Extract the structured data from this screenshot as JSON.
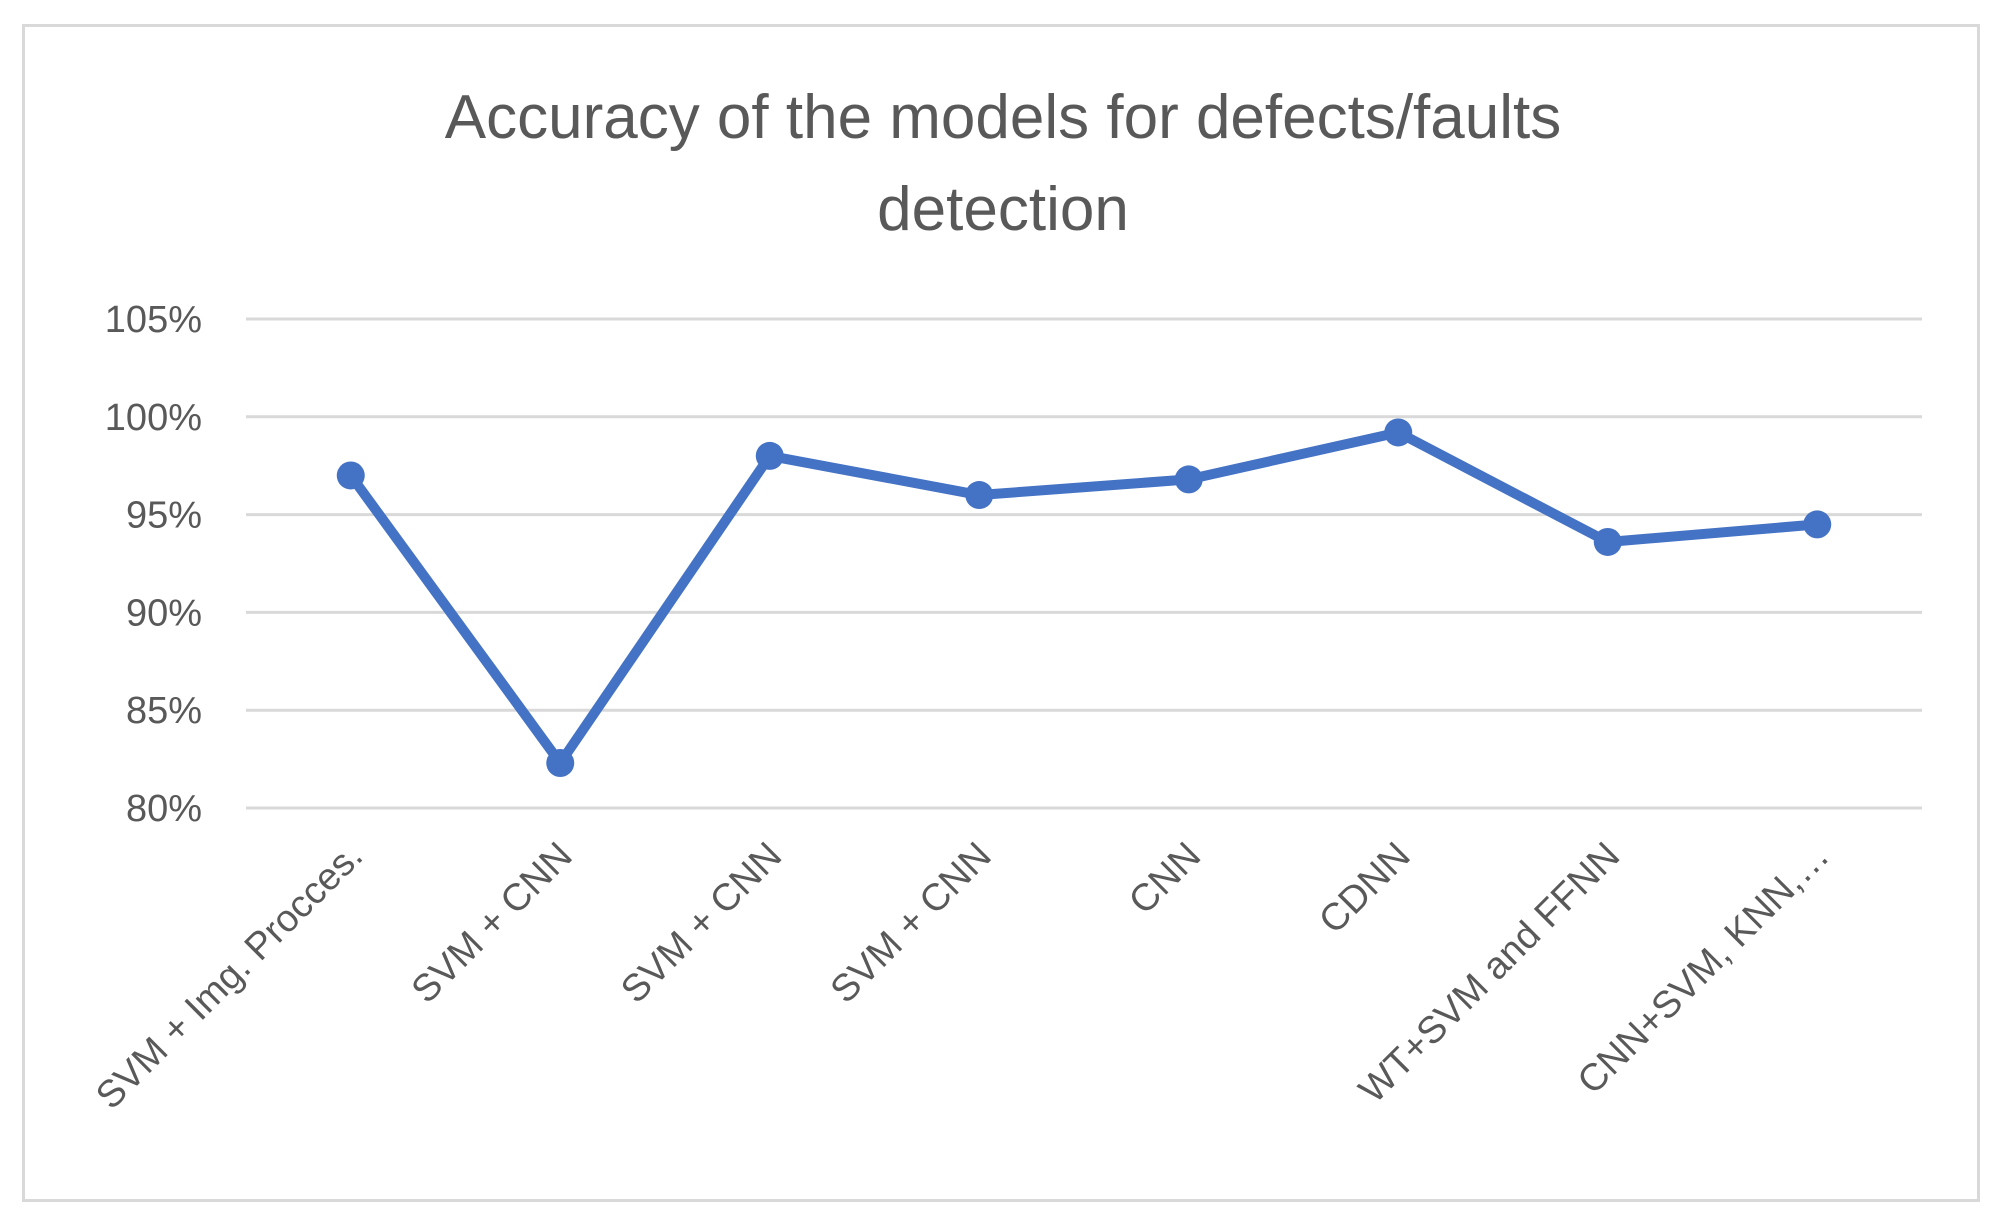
{
  "chart_data": {
    "type": "line",
    "title": "Accuracy of the models for defects/faults detection",
    "title_lines": [
      "Accuracy of the models for defects/faults",
      "detection"
    ],
    "xlabel": "",
    "ylabel": "",
    "categories": [
      "SVM + Img. Procces.",
      "SVM + CNN",
      "SVM + CNN",
      "SVM + CNN",
      "CNN",
      "CDNN",
      "WT+SVM and FFNN",
      "CNN+SVM, KNN,…"
    ],
    "series": [
      {
        "values": [
          0.97,
          0.823,
          0.98,
          0.96,
          0.968,
          0.992,
          0.936,
          0.945
        ]
      }
    ],
    "ylim": [
      0.8,
      1.05
    ],
    "yticks": [
      0.8,
      0.85,
      0.9,
      0.95,
      1.0,
      1.05
    ],
    "ytick_labels": [
      "80%",
      "85%",
      "90%",
      "95%",
      "100%",
      "105%"
    ],
    "grid": true,
    "legend": "none",
    "colors": {
      "line": "#4472c4",
      "grid": "#d9d9d9",
      "text": "#595959",
      "border": "#d9d9d9"
    }
  }
}
